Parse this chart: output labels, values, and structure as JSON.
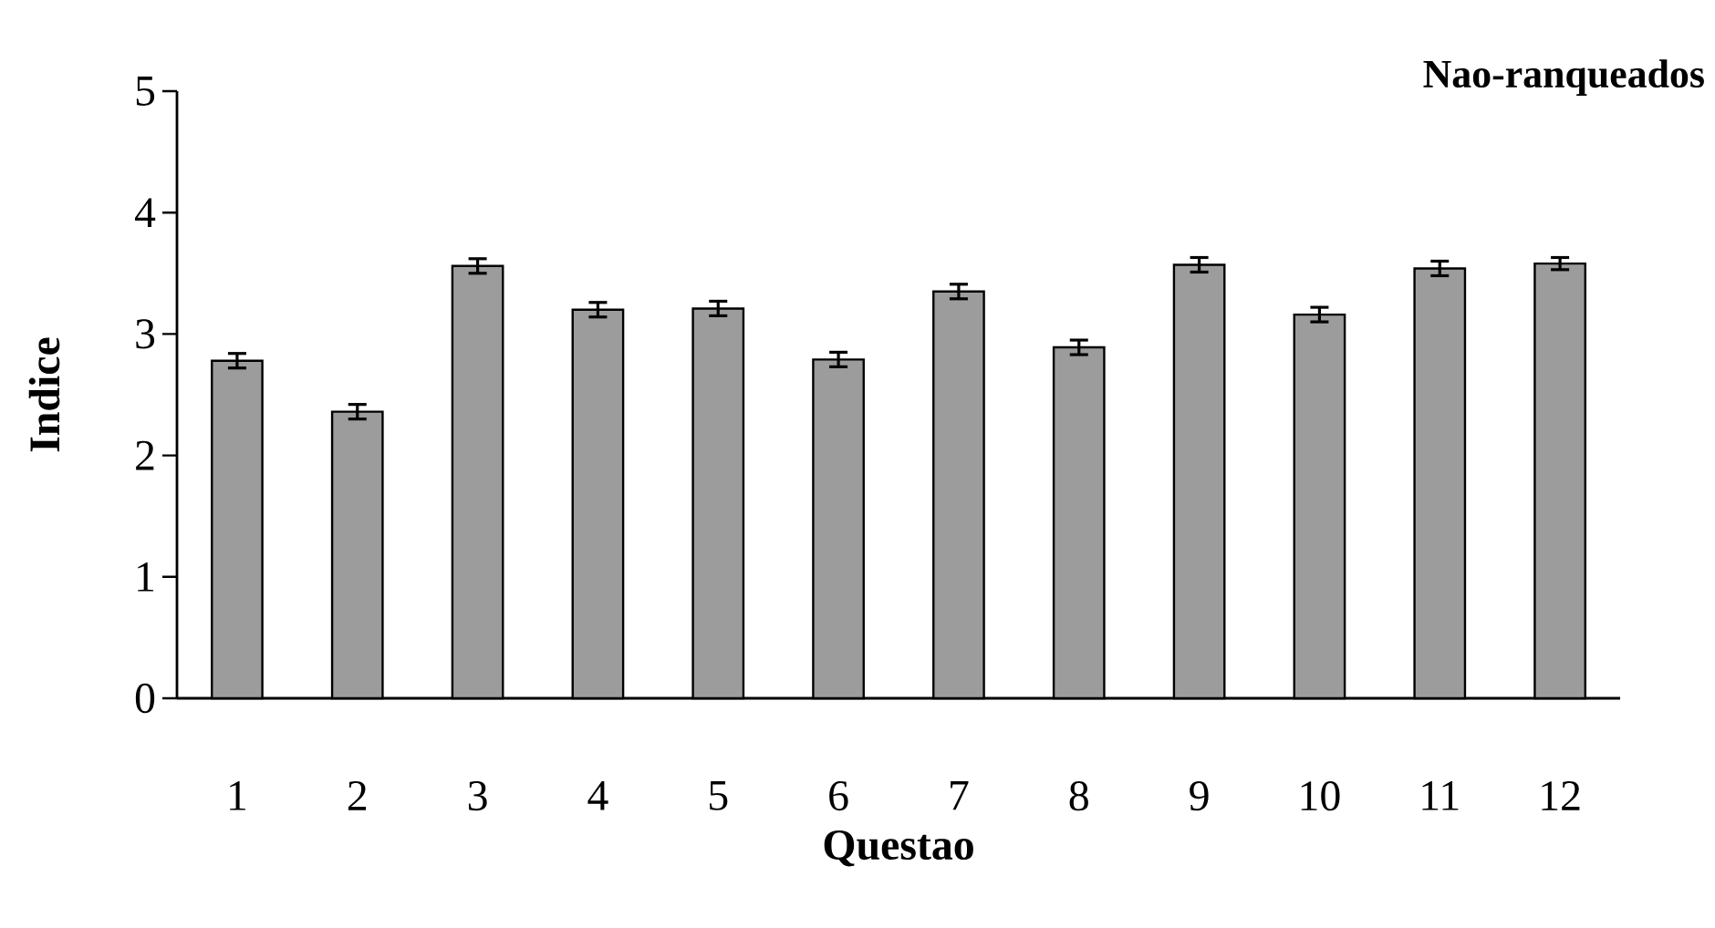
{
  "chart_data": {
    "type": "bar",
    "title": "Nao-ranqueados",
    "xlabel": "Questao",
    "ylabel": "Indice",
    "categories": [
      "1",
      "2",
      "3",
      "4",
      "5",
      "6",
      "7",
      "8",
      "9",
      "10",
      "11",
      "12"
    ],
    "values": [
      2.78,
      2.36,
      3.56,
      3.2,
      3.21,
      2.79,
      3.35,
      2.89,
      3.57,
      3.16,
      3.54,
      3.58
    ],
    "errors": [
      0.06,
      0.06,
      0.06,
      0.06,
      0.06,
      0.06,
      0.06,
      0.06,
      0.06,
      0.06,
      0.06,
      0.05
    ],
    "color": "#9c9c9c",
    "ylim": [
      0,
      5
    ],
    "yticks": [
      0,
      1,
      2,
      3,
      4,
      5
    ],
    "grid": false
  }
}
